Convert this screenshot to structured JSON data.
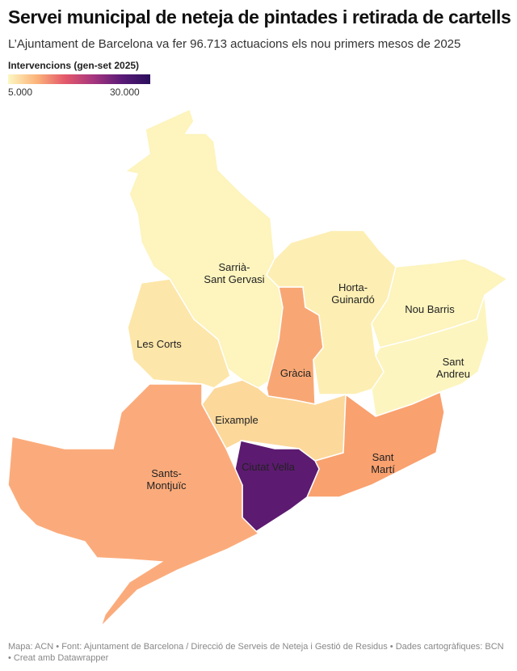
{
  "title": "Servei municipal de neteja de pintades i retirada de cartells",
  "subtitle": "L’Ajuntament de Barcelona va fer 96.713 actuacions els nou primers mesos de 2025",
  "legend": {
    "title": "Intervencions (gen-set 2025)",
    "min": "5.000",
    "max": "30.000",
    "colors": [
      "#fcf7c2",
      "#fbb47a",
      "#e4596a",
      "#a6367e",
      "#5a1b78",
      "#2a0f5c"
    ]
  },
  "districts": [
    {
      "name": "Sarrià-Sant Gervasi",
      "label1": "Sarrià-",
      "label2": "Sant Gervasi",
      "color": "#fdf4be"
    },
    {
      "name": "Les Corts",
      "label1": "Les Corts",
      "label2": "",
      "color": "#fde6a9"
    },
    {
      "name": "Gràcia",
      "label1": "Gràcia",
      "label2": "",
      "color": "#f8a774"
    },
    {
      "name": "Horta-Guinardó",
      "label1": "Horta-",
      "label2": "Guinardó",
      "color": "#fdeeb3"
    },
    {
      "name": "Nou Barris",
      "label1": "Nou Barris",
      "label2": "",
      "color": "#fdf4be"
    },
    {
      "name": "Sant Andreu",
      "label1": "Sant",
      "label2": "Andreu",
      "color": "#fdf5bf"
    },
    {
      "name": "Eixample",
      "label1": "Eixample",
      "label2": "",
      "color": "#fcd89b"
    },
    {
      "name": "Sant Martí",
      "label1": "Sant",
      "label2": "Martí",
      "color": "#f9a16f"
    },
    {
      "name": "Ciutat Vella",
      "label1": "Ciutat Vella",
      "label2": "",
      "color": "#5c1a70"
    },
    {
      "name": "Sants-Montjuïc",
      "label1": "Sants-",
      "label2": "Montjuïc",
      "color": "#fbab7b"
    }
  ],
  "footer": "Mapa: ACN • Font: Ajuntament de Barcelona / Direcció de Serveis de Neteja i Gestió de Residus • Dades cartogràfiques: BCN  • Creat amb Datawrapper"
}
